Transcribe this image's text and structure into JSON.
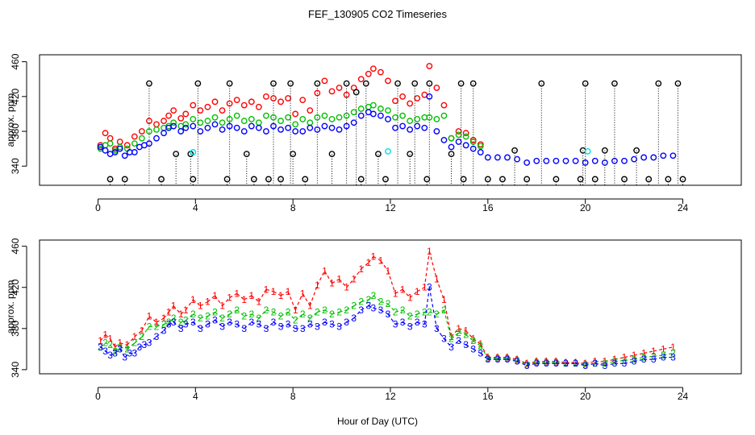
{
  "title": "FEF_130905  CO2 Timeseries",
  "chart_data": [
    {
      "type": "scatter",
      "panel": "top",
      "ylabel": "approx. ppm",
      "xlabel": "",
      "xlim": [
        -2.4,
        26.4
      ],
      "ylim": [
        318,
        468
      ],
      "xticks": [
        "0",
        "4",
        "8",
        "12",
        "16",
        "20",
        "24"
      ],
      "yticks": [
        "340",
        "380",
        "420",
        "460"
      ],
      "series": [
        {
          "name": "red",
          "color": "#ff0000",
          "marker": "circle",
          "x": [
            0.1,
            0.3,
            0.5,
            0.7,
            0.9,
            1.2,
            1.5,
            1.8,
            2.1,
            2.4,
            2.7,
            2.9,
            3.1,
            3.4,
            3.6,
            3.9,
            4.2,
            4.5,
            4.8,
            5.1,
            5.4,
            5.7,
            6.0,
            6.3,
            6.6,
            6.9,
            7.2,
            7.5,
            7.8,
            8.1,
            8.4,
            8.7,
            9.0,
            9.3,
            9.6,
            9.9,
            10.2,
            10.5,
            10.8,
            11.1,
            11.3,
            11.6,
            11.9,
            12.2,
            12.5,
            12.8,
            13.1,
            13.4,
            13.6,
            13.9,
            14.2,
            14.5,
            14.8,
            15.1,
            15.4,
            15.7
          ],
          "y": [
            364,
            378,
            372,
            360,
            368,
            364,
            374,
            380,
            392,
            388,
            392,
            398,
            404,
            395,
            400,
            410,
            404,
            408,
            414,
            404,
            412,
            416,
            410,
            414,
            408,
            420,
            418,
            414,
            418,
            400,
            416,
            404,
            424,
            438,
            426,
            430,
            422,
            430,
            440,
            446,
            452,
            448,
            438,
            415,
            420,
            412,
            418,
            422,
            455,
            430,
            410,
            372,
            380,
            378,
            370,
            365
          ]
        },
        {
          "name": "green",
          "color": "#00c000",
          "marker": "circle",
          "x": [
            0.1,
            0.3,
            0.5,
            0.7,
            0.9,
            1.2,
            1.5,
            1.8,
            2.1,
            2.4,
            2.7,
            2.9,
            3.1,
            3.4,
            3.6,
            3.9,
            4.2,
            4.5,
            4.8,
            5.1,
            5.4,
            5.7,
            6.0,
            6.3,
            6.6,
            6.9,
            7.2,
            7.5,
            7.8,
            8.1,
            8.4,
            8.7,
            9.0,
            9.3,
            9.6,
            9.9,
            10.2,
            10.5,
            10.8,
            11.1,
            11.3,
            11.6,
            11.9,
            12.2,
            12.5,
            12.8,
            13.1,
            13.4,
            13.6,
            13.9,
            14.2,
            14.5,
            14.8,
            15.1,
            15.4,
            15.7
          ],
          "y": [
            360,
            364,
            366,
            358,
            362,
            360,
            366,
            372,
            380,
            382,
            384,
            386,
            390,
            386,
            388,
            394,
            390,
            392,
            396,
            390,
            394,
            398,
            392,
            394,
            390,
            398,
            396,
            392,
            396,
            388,
            394,
            390,
            396,
            398,
            394,
            396,
            398,
            402,
            406,
            408,
            410,
            406,
            404,
            396,
            398,
            392,
            394,
            396,
            396,
            394,
            398,
            372,
            376,
            374,
            368,
            363
          ]
        },
        {
          "name": "blue",
          "color": "#0000ff",
          "marker": "circle",
          "x": [
            0.1,
            0.3,
            0.5,
            0.7,
            0.9,
            1.1,
            1.3,
            1.5,
            1.7,
            1.9,
            2.1,
            2.4,
            2.7,
            2.9,
            3.1,
            3.4,
            3.6,
            3.9,
            4.2,
            4.5,
            4.8,
            5.1,
            5.4,
            5.7,
            6.0,
            6.3,
            6.6,
            6.9,
            7.2,
            7.5,
            7.8,
            8.1,
            8.4,
            8.7,
            9.0,
            9.3,
            9.6,
            9.9,
            10.2,
            10.5,
            10.8,
            11.1,
            11.3,
            11.6,
            11.9,
            12.2,
            12.5,
            12.8,
            13.1,
            13.4,
            13.6,
            13.9,
            14.2,
            14.5,
            14.8,
            15.1,
            15.4,
            15.7,
            16.0,
            16.4,
            16.8,
            17.2,
            17.6,
            18.0,
            18.4,
            18.8,
            19.2,
            19.6,
            20.0,
            20.4,
            20.8,
            21.2,
            21.6,
            22.0,
            22.4,
            22.8,
            23.2,
            23.6
          ],
          "y": [
            362,
            358,
            354,
            356,
            360,
            352,
            356,
            356,
            362,
            364,
            366,
            372,
            378,
            384,
            386,
            380,
            384,
            386,
            380,
            384,
            388,
            382,
            386,
            384,
            380,
            386,
            384,
            380,
            386,
            382,
            384,
            380,
            380,
            384,
            382,
            386,
            384,
            382,
            386,
            390,
            398,
            402,
            400,
            398,
            394,
            384,
            386,
            382,
            386,
            384,
            420,
            380,
            370,
            362,
            368,
            364,
            360,
            356,
            350,
            350,
            350,
            348,
            344,
            346,
            346,
            346,
            346,
            346,
            344,
            346,
            344,
            346,
            346,
            348,
            350,
            350,
            352,
            352
          ]
        },
        {
          "name": "black",
          "color": "#000000",
          "marker": "circle",
          "x": [
            0.5,
            1.1,
            2.1,
            2.6,
            3.2,
            3.8,
            3.9,
            4.1,
            5.3,
            5.4,
            6.1,
            6.4,
            7.0,
            7.2,
            7.5,
            7.9,
            8.0,
            8.5,
            9.0,
            9.6,
            10.2,
            10.6,
            10.8,
            11.0,
            11.5,
            11.8,
            12.3,
            12.8,
            13.0,
            13.5,
            13.6,
            14.5,
            14.9,
            15.0,
            15.4,
            16.0,
            16.6,
            17.1,
            17.6,
            18.2,
            18.8,
            19.8,
            19.9,
            20.0,
            20.4,
            20.8,
            21.2,
            21.6,
            22.1,
            22.6,
            23.0,
            23.4,
            23.8,
            24.0
          ],
          "y": [
            325,
            325,
            435,
            325,
            354,
            354,
            325,
            435,
            325,
            435,
            354,
            325,
            325,
            435,
            325,
            435,
            354,
            325,
            435,
            354,
            435,
            425,
            325,
            435,
            354,
            325,
            435,
            354,
            435,
            325,
            435,
            354,
            435,
            325,
            435,
            325,
            325,
            358,
            325,
            435,
            325,
            325,
            358,
            435,
            325,
            358,
            435,
            325,
            358,
            325,
            435,
            325,
            435,
            325
          ]
        },
        {
          "name": "cyan",
          "color": "#00e0e0",
          "marker": "circle",
          "x": [
            3.9,
            11.9,
            20.1
          ],
          "y": [
            356,
            357,
            357
          ]
        }
      ]
    },
    {
      "type": "line",
      "panel": "bottom",
      "ylabel": "approx. ppm",
      "xlabel": "Hour of Day (UTC)",
      "xlim": [
        -2.4,
        26.4
      ],
      "ylim": [
        336,
        466
      ],
      "xticks": [
        "0",
        "4",
        "8",
        "12",
        "16",
        "20",
        "24"
      ],
      "yticks": [
        "340",
        "380",
        "420",
        "460"
      ],
      "series": [
        {
          "name": "1",
          "color": "#ff0000",
          "symbol": "1",
          "x": [
            0.1,
            0.3,
            0.5,
            0.7,
            0.9,
            1.2,
            1.5,
            1.8,
            2.1,
            2.4,
            2.7,
            2.9,
            3.1,
            3.4,
            3.6,
            3.9,
            4.2,
            4.5,
            4.8,
            5.1,
            5.4,
            5.7,
            6.0,
            6.3,
            6.6,
            6.9,
            7.2,
            7.5,
            7.8,
            8.1,
            8.4,
            8.7,
            9.0,
            9.3,
            9.6,
            9.9,
            10.2,
            10.5,
            10.8,
            11.1,
            11.3,
            11.6,
            11.9,
            12.2,
            12.5,
            12.8,
            13.1,
            13.4,
            13.6,
            13.9,
            14.2,
            14.5,
            14.8,
            15.1,
            15.4,
            15.7,
            16.0,
            16.4,
            16.8,
            17.2,
            17.6,
            18.0,
            18.4,
            18.8,
            19.2,
            19.6,
            20.0,
            20.4,
            20.8,
            21.2,
            21.6,
            22.0,
            22.4,
            22.8,
            23.2,
            23.6
          ],
          "y": [
            368,
            374,
            370,
            362,
            366,
            364,
            372,
            378,
            392,
            386,
            390,
            396,
            402,
            394,
            398,
            408,
            402,
            406,
            412,
            402,
            410,
            414,
            408,
            412,
            406,
            418,
            416,
            412,
            416,
            398,
            414,
            402,
            422,
            436,
            424,
            428,
            420,
            428,
            438,
            444,
            450,
            446,
            436,
            414,
            418,
            410,
            416,
            420,
            455,
            428,
            408,
            372,
            380,
            378,
            370,
            365,
            352,
            352,
            352,
            350,
            346,
            348,
            348,
            348,
            347,
            347,
            346,
            348,
            348,
            350,
            352,
            354,
            356,
            358,
            360,
            362
          ]
        },
        {
          "name": "2",
          "color": "#00c000",
          "symbol": "2",
          "x": [
            0.1,
            0.3,
            0.5,
            0.7,
            0.9,
            1.2,
            1.5,
            1.8,
            2.1,
            2.4,
            2.7,
            2.9,
            3.1,
            3.4,
            3.6,
            3.9,
            4.2,
            4.5,
            4.8,
            5.1,
            5.4,
            5.7,
            6.0,
            6.3,
            6.6,
            6.9,
            7.2,
            7.5,
            7.8,
            8.1,
            8.4,
            8.7,
            9.0,
            9.3,
            9.6,
            9.9,
            10.2,
            10.5,
            10.8,
            11.1,
            11.3,
            11.6,
            11.9,
            12.2,
            12.5,
            12.8,
            13.1,
            13.4,
            13.6,
            13.9,
            14.2,
            14.5,
            14.8,
            15.1,
            15.4,
            15.7,
            16.0,
            16.4,
            16.8,
            17.2,
            17.6,
            18.0,
            18.4,
            18.8,
            19.2,
            19.6,
            20.0,
            20.4,
            20.8,
            21.2,
            21.6,
            22.0,
            22.4,
            22.8,
            23.2,
            23.6
          ],
          "y": [
            362,
            366,
            364,
            358,
            362,
            360,
            366,
            372,
            382,
            382,
            384,
            386,
            390,
            386,
            388,
            394,
            390,
            392,
            396,
            390,
            394,
            398,
            392,
            394,
            390,
            398,
            396,
            392,
            396,
            388,
            394,
            390,
            396,
            398,
            394,
            396,
            398,
            402,
            406,
            408,
            412,
            406,
            404,
            396,
            398,
            392,
            394,
            396,
            396,
            394,
            398,
            370,
            376,
            374,
            368,
            363,
            351,
            351,
            351,
            349,
            345,
            347,
            347,
            347,
            346,
            346,
            345,
            346,
            346,
            348,
            349,
            350,
            352,
            353,
            354,
            356
          ]
        },
        {
          "name": "3",
          "color": "#0000ff",
          "symbol": "3",
          "x": [
            0.1,
            0.3,
            0.5,
            0.7,
            0.9,
            1.1,
            1.3,
            1.5,
            1.7,
            1.9,
            2.1,
            2.4,
            2.7,
            2.9,
            3.1,
            3.4,
            3.6,
            3.9,
            4.2,
            4.5,
            4.8,
            5.1,
            5.4,
            5.7,
            6.0,
            6.3,
            6.6,
            6.9,
            7.2,
            7.5,
            7.8,
            8.1,
            8.4,
            8.7,
            9.0,
            9.3,
            9.6,
            9.9,
            10.2,
            10.5,
            10.8,
            11.1,
            11.3,
            11.6,
            11.9,
            12.2,
            12.5,
            12.8,
            13.1,
            13.4,
            13.6,
            13.9,
            14.2,
            14.5,
            14.8,
            15.1,
            15.4,
            15.7,
            16.0,
            16.4,
            16.8,
            17.2,
            17.6,
            18.0,
            18.4,
            18.8,
            19.2,
            19.6,
            20.0,
            20.4,
            20.8,
            21.2,
            21.6,
            22.0,
            22.4,
            22.8,
            23.2,
            23.6
          ],
          "y": [
            362,
            358,
            354,
            356,
            360,
            352,
            356,
            356,
            362,
            364,
            366,
            372,
            378,
            384,
            386,
            380,
            384,
            386,
            380,
            384,
            388,
            382,
            386,
            384,
            380,
            386,
            384,
            380,
            386,
            382,
            384,
            380,
            380,
            384,
            382,
            386,
            384,
            382,
            386,
            390,
            398,
            402,
            400,
            398,
            394,
            384,
            386,
            382,
            386,
            384,
            420,
            380,
            370,
            362,
            368,
            364,
            360,
            356,
            350,
            350,
            350,
            348,
            344,
            346,
            346,
            346,
            346,
            346,
            344,
            346,
            344,
            346,
            346,
            348,
            350,
            350,
            352,
            352
          ]
        }
      ]
    }
  ]
}
